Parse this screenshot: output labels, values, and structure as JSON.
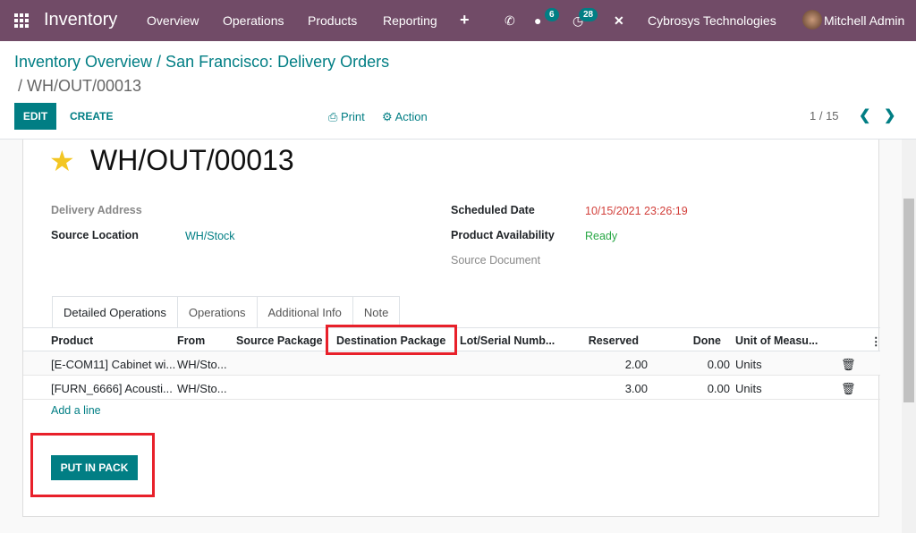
{
  "navbar": {
    "app": "Inventory",
    "menu": [
      "Overview",
      "Operations",
      "Products",
      "Reporting"
    ],
    "messages_count": "6",
    "activities_count": "28",
    "company": "Cybrosys Technologies",
    "user": "Mitchell Admin",
    "color": "#714B67"
  },
  "breadcrumb": {
    "part1": "Inventory Overview / San Francisco: Delivery Orders",
    "part2": "/ WH/OUT/00013"
  },
  "toolbar": {
    "edit": "EDIT",
    "create": "CREATE",
    "print": "Print",
    "action": "Action",
    "pager": "1 / 15"
  },
  "form": {
    "title": "WH/OUT/00013",
    "starred": true,
    "delivery_address_label": "Delivery Address",
    "source_location_label": "Source Location",
    "source_location": "WH/Stock",
    "scheduled_date_label": "Scheduled Date",
    "scheduled_date": "10/15/2021 23:26:19",
    "availability_label": "Product Availability",
    "availability": "Ready",
    "source_document_label": "Source Document"
  },
  "tabs": [
    "Detailed Operations",
    "Operations",
    "Additional Info",
    "Note"
  ],
  "table": {
    "columns": [
      "Product",
      "From",
      "Source Package",
      "Destination Package",
      "Lot/Serial Numb...",
      "Reserved",
      "Done",
      "Unit of Measu..."
    ],
    "rows": [
      {
        "product": "[E-COM11] Cabinet wi...",
        "from": "WH/Sto...",
        "reserved": "2.00",
        "done": "0.00",
        "uom": "Units"
      },
      {
        "product": "[FURN_6666] Acousti...",
        "from": "WH/Sto...",
        "reserved": "3.00",
        "done": "0.00",
        "uom": "Units"
      }
    ],
    "add_line": "Add a line"
  },
  "put_in_pack": "PUT IN PACK",
  "accent": "#017e84",
  "highlight": "#e8202a"
}
